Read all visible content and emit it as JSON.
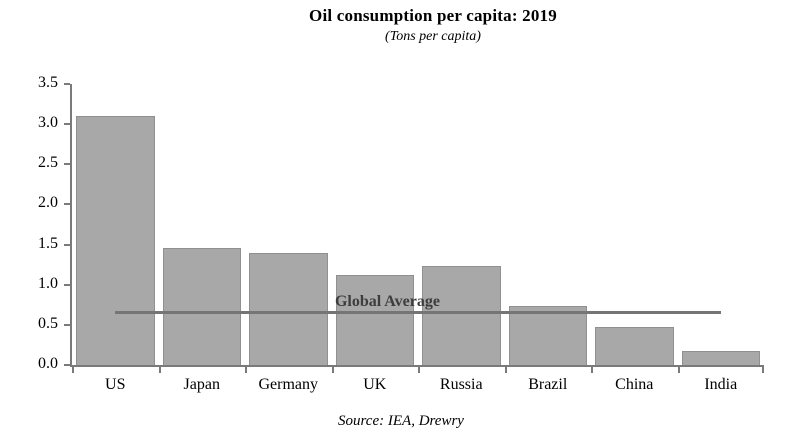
{
  "header": {
    "title": "Oil consumption per capita: 2019",
    "subtitle": "(Tons per capita)"
  },
  "footer": {
    "source": "Source: IEA, Drewry"
  },
  "chart_data": {
    "type": "bar",
    "title": "Oil consumption per capita: 2019",
    "subtitle": "(Tons per capita)",
    "categories": [
      "US",
      "Japan",
      "Germany",
      "UK",
      "Russia",
      "Brazil",
      "China",
      "India"
    ],
    "values": [
      3.1,
      1.46,
      1.39,
      1.12,
      1.23,
      0.73,
      0.47,
      0.18
    ],
    "xlabel": "",
    "ylabel": "Tons per capita",
    "ylim": [
      0,
      3.5
    ],
    "ytick_step": 0.5,
    "ytick_decimals": 1,
    "grid": false,
    "legend": "none",
    "overlay_line": {
      "label": "Global Average",
      "value": 0.65
    },
    "source": "Source: IEA, Drewry",
    "colors": {
      "bar_fill": "#a8a8a8",
      "bar_border": "#909090",
      "avg_line": "#757575",
      "axis": "#7a7a7a",
      "text": "#000000"
    }
  }
}
